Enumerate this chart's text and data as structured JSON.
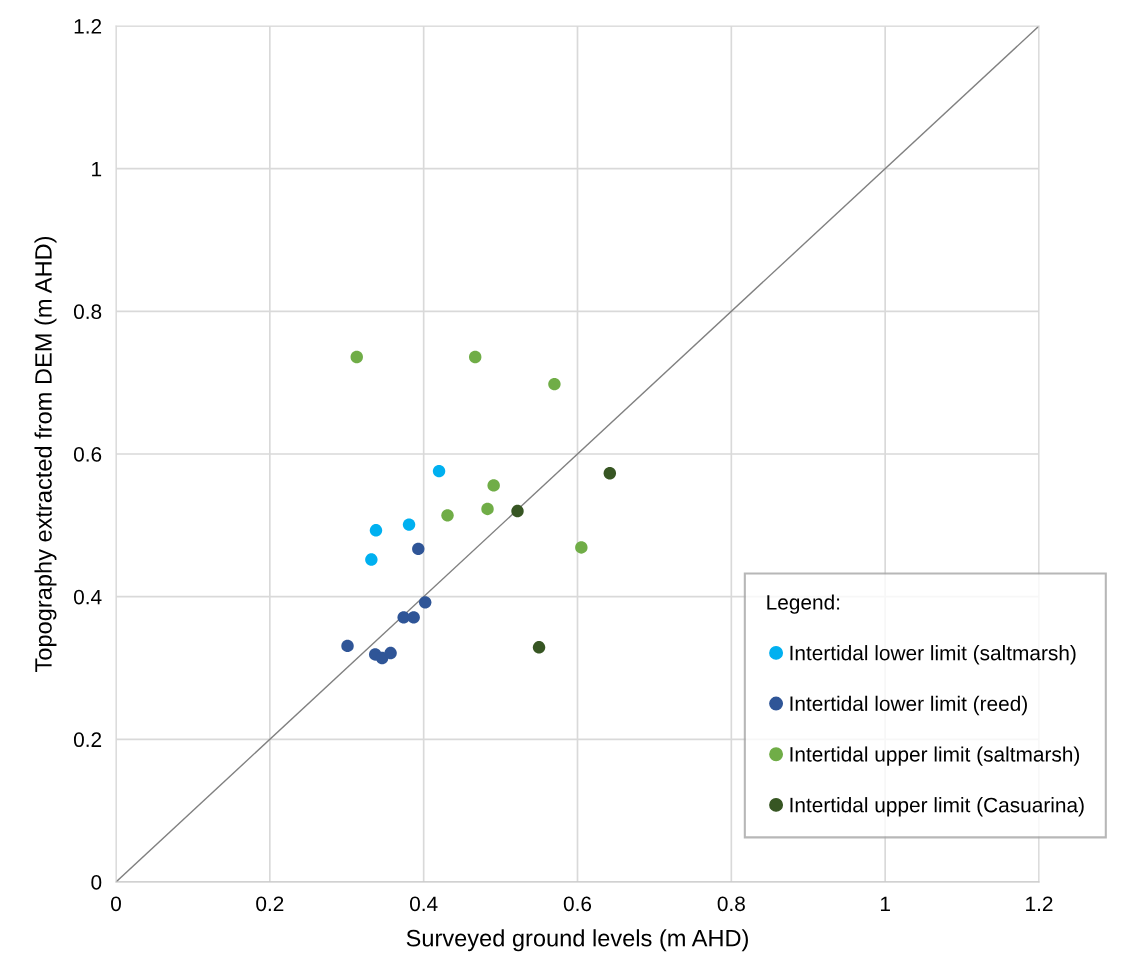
{
  "chart_data": {
    "type": "scatter",
    "xlabel": "Surveyed ground levels (m AHD)",
    "ylabel": "Topography extracted from DEM (m AHD)",
    "legend_title": "Legend:",
    "xlim": [
      0,
      1.2
    ],
    "ylim": [
      0,
      1.2
    ],
    "xticks": [
      0,
      0.2,
      0.4,
      0.6,
      0.8,
      1,
      1.2
    ],
    "yticks": [
      0,
      0.2,
      0.4,
      0.6,
      0.8,
      1,
      1.2
    ],
    "grid": true,
    "legend": "bottom right",
    "marker": "circle",
    "series": [
      {
        "name": "Intertidal lower limit (saltmarsh)",
        "color": "#00b0f0",
        "x": [
          0.42,
          0.338,
          0.381,
          0.332
        ],
        "values": [
          0.576,
          0.493,
          0.501,
          0.452
        ]
      },
      {
        "name": "Intertidal lower limit (reed)",
        "color": "#2f5597",
        "x": [
          0.393,
          0.402,
          0.374,
          0.387,
          0.301,
          0.337,
          0.346,
          0.357
        ],
        "values": [
          0.467,
          0.392,
          0.371,
          0.371,
          0.331,
          0.319,
          0.314,
          0.321
        ]
      },
      {
        "name": "Intertidal upper limit (saltmarsh)",
        "color": "#70ad47",
        "x": [
          0.313,
          0.467,
          0.57,
          0.491,
          0.483,
          0.431,
          0.605
        ],
        "values": [
          0.736,
          0.736,
          0.698,
          0.556,
          0.523,
          0.514,
          0.469
        ]
      },
      {
        "name": "Intertidal upper limit (Casuarina)",
        "color": "#375623",
        "x": [
          0.642,
          0.522,
          0.55
        ],
        "values": [
          0.573,
          0.52,
          0.329
        ]
      },
      {
        "type": "line",
        "color": "#808080",
        "marker": "none",
        "x": [
          0,
          1.2
        ],
        "values": [
          0,
          1.2
        ]
      }
    ]
  }
}
